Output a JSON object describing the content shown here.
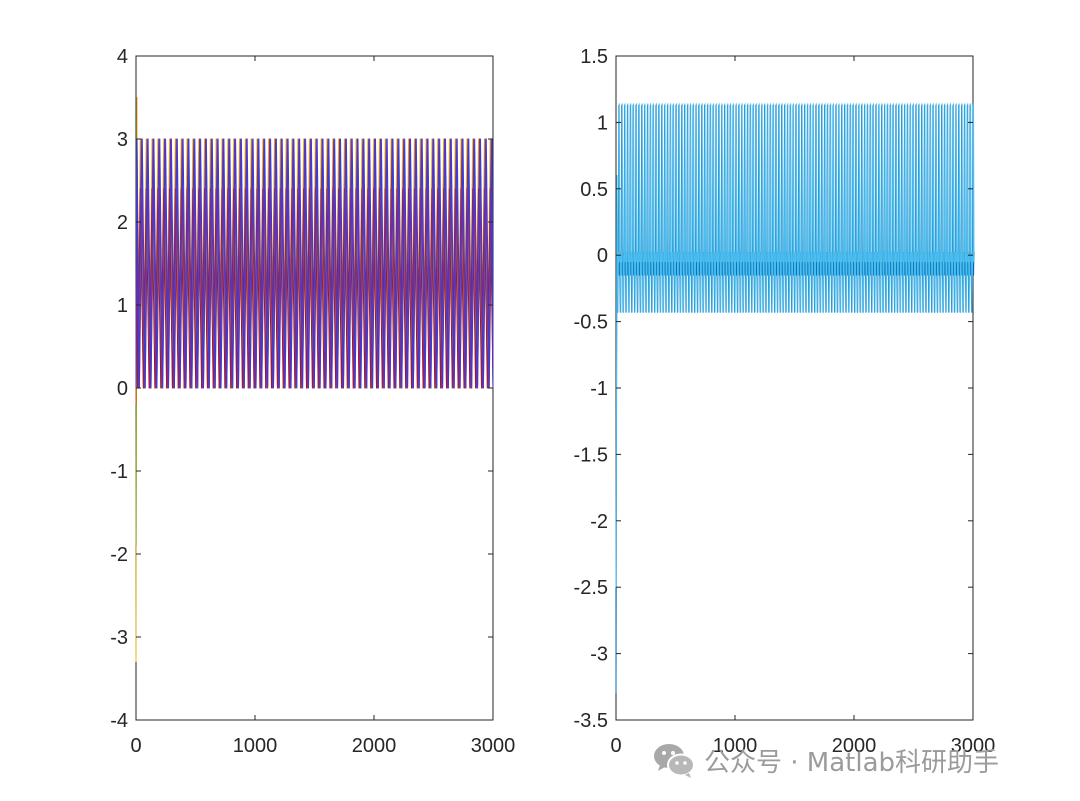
{
  "chart_data": [
    {
      "type": "line",
      "xlim": [
        0,
        3000
      ],
      "ylim": [
        -4,
        4
      ],
      "x_ticks": [
        0,
        1000,
        2000,
        3000
      ],
      "y_ticks": [
        -4,
        -3,
        -2,
        -1,
        0,
        1,
        2,
        3,
        4
      ],
      "grid": false,
      "series": [
        {
          "color": "#EDB120",
          "period": 49,
          "low": 0,
          "high": 3,
          "start": [
            0,
            -3.3
          ],
          "peak": 3.5
        },
        {
          "color": "#77AC30",
          "period": 49,
          "low": 0,
          "high": 3,
          "start": [
            0,
            -1.9
          ],
          "peak": 2.9
        },
        {
          "color": "#D95319",
          "period": 49,
          "low": 0,
          "high": 2.4,
          "start": [
            0,
            -0.2
          ],
          "peak": 2.4
        },
        {
          "color": "#A2142F",
          "period": 49,
          "low": 0,
          "high": 2.4,
          "start": [
            0,
            0
          ],
          "peak": 2.4
        },
        {
          "color": "#7E2F8E",
          "period": 49,
          "low": 0,
          "high": 3,
          "start": [
            0,
            0
          ],
          "peak": 3
        },
        {
          "color": "#3B3BD9",
          "period": 49,
          "low": 0,
          "high": 3,
          "start": [
            0,
            0
          ],
          "peak": 3
        }
      ]
    },
    {
      "type": "line",
      "xlim": [
        0,
        3000
      ],
      "ylim": [
        -3.5,
        1.5
      ],
      "x_ticks": [
        0,
        1000,
        2000,
        3000
      ],
      "y_ticks": [
        -3.5,
        -3,
        -2.5,
        -2,
        -1.5,
        -1,
        -0.5,
        0,
        0.5,
        1,
        1.5
      ],
      "grid": false,
      "series": [
        {
          "color": "#0072BD",
          "period": 24,
          "low": -0.43,
          "high": 1.13,
          "band": [
            -0.15,
            0.02
          ],
          "start": [
            0,
            -3.3
          ],
          "peak": 0.5
        },
        {
          "color": "#4DBEEE",
          "period": 24,
          "low": -0.43,
          "high": 1.14,
          "band": [
            -0.05,
            0.02
          ],
          "start": [
            0,
            -2.5
          ],
          "peak": 0.6
        }
      ]
    }
  ],
  "watermark": {
    "text": "公众号 · Matlab科研助手",
    "icon": "wechat-icon"
  }
}
